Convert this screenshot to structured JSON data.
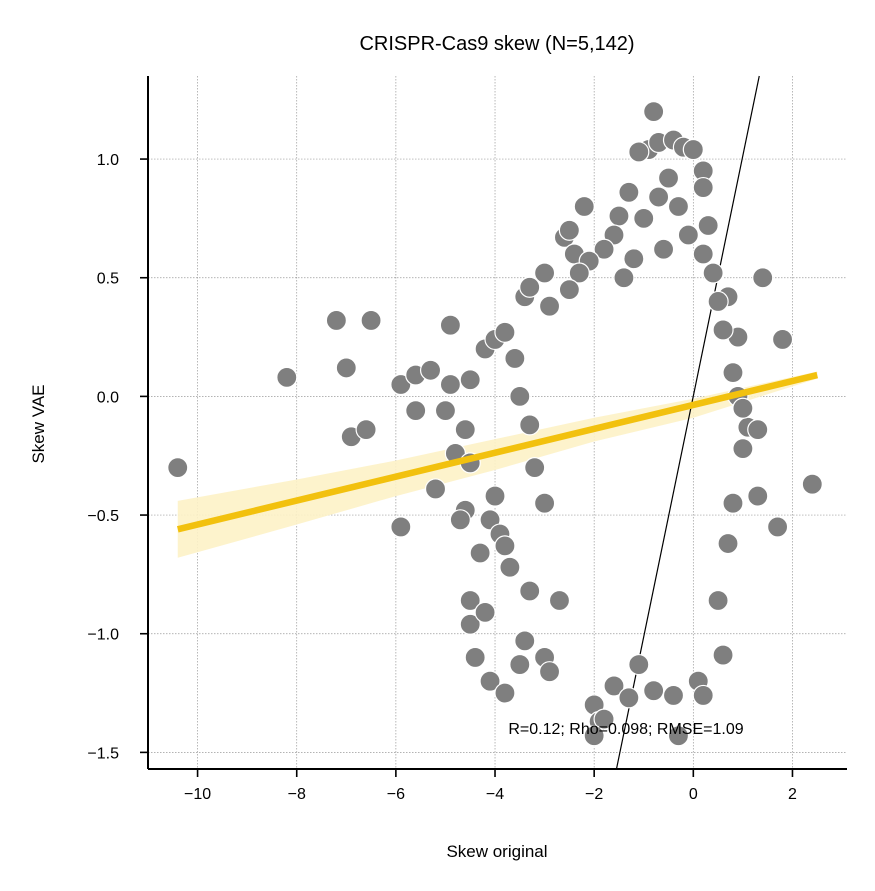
{
  "chart_data": {
    "type": "scatter",
    "title": "CRISPR-Cas9 skew (N=5,142)",
    "xlabel": "Skew original",
    "ylabel": "Skew VAE",
    "xlim": [
      -11.0,
      3.1
    ],
    "ylim": [
      -1.57,
      1.35
    ],
    "xticks": [
      -10,
      -8,
      -6,
      -4,
      -2,
      0,
      2
    ],
    "yticks": [
      -1.5,
      -1.0,
      -0.5,
      0.0,
      0.5,
      1.0
    ],
    "grid": true,
    "annotation": "R=0.12; Rho=0.098; RMSE=1.09",
    "point_color": "#7f7f7f",
    "point_edge_color": "#ffffff",
    "regression_color": "#f2c10e",
    "ci_color": "#fdf2c6",
    "identity_line_color": "#000000",
    "regression_line": {
      "x": [
        -10.4,
        2.5
      ],
      "y": [
        -0.56,
        0.09
      ]
    },
    "confidence_band": {
      "x": [
        -10.4,
        -8.0,
        -6.0,
        -4.0,
        -2.0,
        0.0,
        2.5
      ],
      "upper": [
        -0.44,
        -0.35,
        -0.27,
        -0.18,
        -0.09,
        -0.01,
        0.105
      ],
      "lower": [
        -0.68,
        -0.54,
        -0.42,
        -0.31,
        -0.19,
        -0.09,
        0.075
      ]
    },
    "identity_line": {
      "x": [
        -1.55,
        1.33
      ],
      "y": [
        -1.57,
        1.35
      ]
    },
    "series": [
      {
        "points": [
          [
            -10.4,
            -0.3
          ],
          [
            -8.2,
            0.08
          ],
          [
            -7.2,
            0.32
          ],
          [
            -7.0,
            0.12
          ],
          [
            -6.9,
            -0.17
          ],
          [
            -6.6,
            -0.14
          ],
          [
            -6.5,
            0.32
          ],
          [
            -5.9,
            -0.55
          ],
          [
            -5.9,
            0.05
          ],
          [
            -5.6,
            0.09
          ],
          [
            -5.6,
            -0.06
          ],
          [
            -5.3,
            0.11
          ],
          [
            -5.2,
            -0.39
          ],
          [
            -5.0,
            -0.06
          ],
          [
            -4.9,
            0.3
          ],
          [
            -4.8,
            -0.24
          ],
          [
            -4.9,
            0.05
          ],
          [
            -4.6,
            -0.14
          ],
          [
            -4.5,
            -0.28
          ],
          [
            -4.5,
            0.07
          ],
          [
            -4.6,
            -0.48
          ],
          [
            -4.7,
            -0.52
          ],
          [
            -4.5,
            -0.86
          ],
          [
            -4.5,
            -0.96
          ],
          [
            -4.4,
            -1.1
          ],
          [
            -4.2,
            -0.91
          ],
          [
            -4.1,
            -0.52
          ],
          [
            -4.0,
            -0.42
          ],
          [
            -3.9,
            -0.58
          ],
          [
            -3.8,
            -0.63
          ],
          [
            -3.7,
            -0.72
          ],
          [
            -4.3,
            -0.66
          ],
          [
            -4.1,
            -1.2
          ],
          [
            -3.8,
            -1.25
          ],
          [
            -3.5,
            -1.13
          ],
          [
            -3.4,
            -1.03
          ],
          [
            -3.0,
            -1.1
          ],
          [
            -2.9,
            -1.16
          ],
          [
            -3.3,
            -0.82
          ],
          [
            -2.7,
            -0.86
          ],
          [
            -4.2,
            0.2
          ],
          [
            -4.0,
            0.24
          ],
          [
            -3.8,
            0.27
          ],
          [
            -3.6,
            0.16
          ],
          [
            -3.4,
            0.42
          ],
          [
            -3.3,
            0.46
          ],
          [
            -3.0,
            0.52
          ],
          [
            -2.9,
            0.38
          ],
          [
            -2.6,
            0.67
          ],
          [
            -2.5,
            0.7
          ],
          [
            -2.2,
            0.8
          ],
          [
            -2.4,
            0.6
          ],
          [
            -3.0,
            -0.45
          ],
          [
            -3.2,
            -0.3
          ],
          [
            -3.5,
            0.0
          ],
          [
            -3.3,
            -0.12
          ],
          [
            -2.0,
            -1.3
          ],
          [
            -1.9,
            -1.37
          ],
          [
            -1.8,
            -1.36
          ],
          [
            -2.0,
            -1.43
          ],
          [
            -1.6,
            -1.22
          ],
          [
            -1.3,
            -1.27
          ],
          [
            -1.1,
            -1.13
          ],
          [
            -0.8,
            -1.24
          ],
          [
            -0.4,
            -1.26
          ],
          [
            -0.3,
            -1.43
          ],
          [
            0.1,
            -1.2
          ],
          [
            0.2,
            -1.26
          ],
          [
            0.6,
            -1.09
          ],
          [
            0.5,
            -0.86
          ],
          [
            0.7,
            -0.62
          ],
          [
            0.8,
            -0.45
          ],
          [
            1.0,
            -0.22
          ],
          [
            1.1,
            -0.13
          ],
          [
            1.3,
            -0.14
          ],
          [
            1.3,
            -0.42
          ],
          [
            1.7,
            -0.55
          ],
          [
            2.4,
            -0.37
          ],
          [
            1.8,
            0.24
          ],
          [
            1.4,
            0.5
          ],
          [
            0.7,
            0.42
          ],
          [
            0.9,
            0.25
          ],
          [
            0.9,
            0.0
          ],
          [
            0.8,
            0.1
          ],
          [
            1.0,
            -0.05
          ],
          [
            -0.8,
            1.2
          ],
          [
            -0.9,
            1.04
          ],
          [
            -0.7,
            1.07
          ],
          [
            -0.4,
            1.08
          ],
          [
            -0.2,
            1.05
          ],
          [
            0.0,
            1.04
          ],
          [
            0.2,
            0.95
          ],
          [
            0.2,
            0.88
          ],
          [
            -1.1,
            1.03
          ],
          [
            -1.3,
            0.86
          ],
          [
            -1.5,
            0.76
          ],
          [
            -1.6,
            0.68
          ],
          [
            -1.8,
            0.62
          ],
          [
            -2.1,
            0.57
          ],
          [
            -2.3,
            0.52
          ],
          [
            -2.5,
            0.45
          ],
          [
            0.3,
            0.72
          ],
          [
            0.2,
            0.6
          ],
          [
            0.4,
            0.52
          ],
          [
            0.5,
            0.4
          ],
          [
            0.6,
            0.28
          ],
          [
            -0.5,
            0.92
          ],
          [
            -0.7,
            0.84
          ],
          [
            -1.0,
            0.75
          ],
          [
            -0.3,
            0.8
          ],
          [
            -0.1,
            0.68
          ],
          [
            -0.6,
            0.62
          ],
          [
            -1.2,
            0.58
          ],
          [
            -1.4,
            0.5
          ]
        ]
      }
    ]
  }
}
